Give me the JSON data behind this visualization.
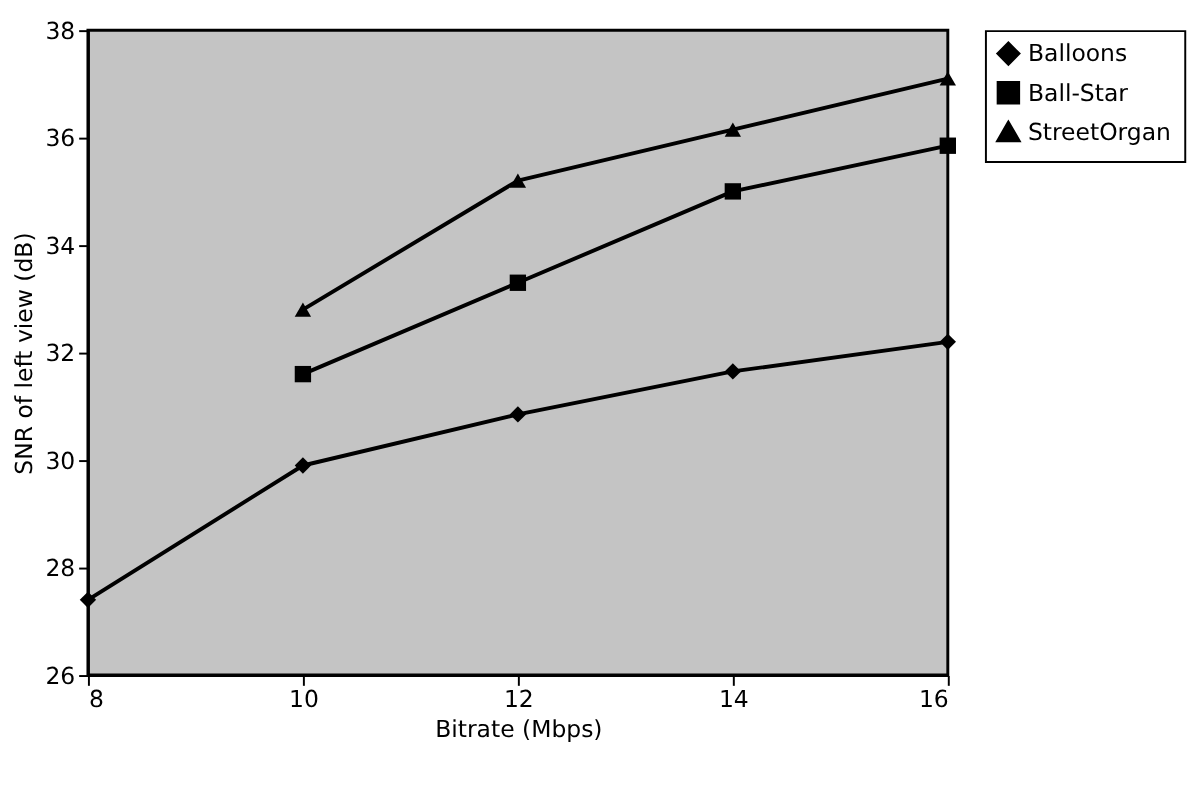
{
  "chart_data": {
    "type": "line",
    "xlabel": "Bitrate (Mbps)",
    "ylabel": "SNR of left view (dB)",
    "x": [
      8,
      10,
      12,
      14,
      16
    ],
    "series": [
      {
        "name": "Balloons",
        "color": "#000000",
        "marker": "diamond",
        "values": [
          27.4,
          29.9,
          30.85,
          31.65,
          32.2
        ]
      },
      {
        "name": "Ball-Star",
        "color": "#000000",
        "marker": "square",
        "values": [
          null,
          31.6,
          33.3,
          35.0,
          35.85
        ]
      },
      {
        "name": "StreetOrgan",
        "color": "#000000",
        "marker": "triangle",
        "values": [
          null,
          32.8,
          35.2,
          36.15,
          37.1
        ]
      }
    ],
    "xlim": [
      8,
      16
    ],
    "xticks": [
      8,
      10,
      12,
      14,
      16
    ],
    "ylim": [
      26,
      38
    ],
    "yticks": [
      26,
      28,
      30,
      32,
      34,
      36,
      38
    ],
    "grid": false,
    "legend": "right",
    "line_style": "solid"
  }
}
